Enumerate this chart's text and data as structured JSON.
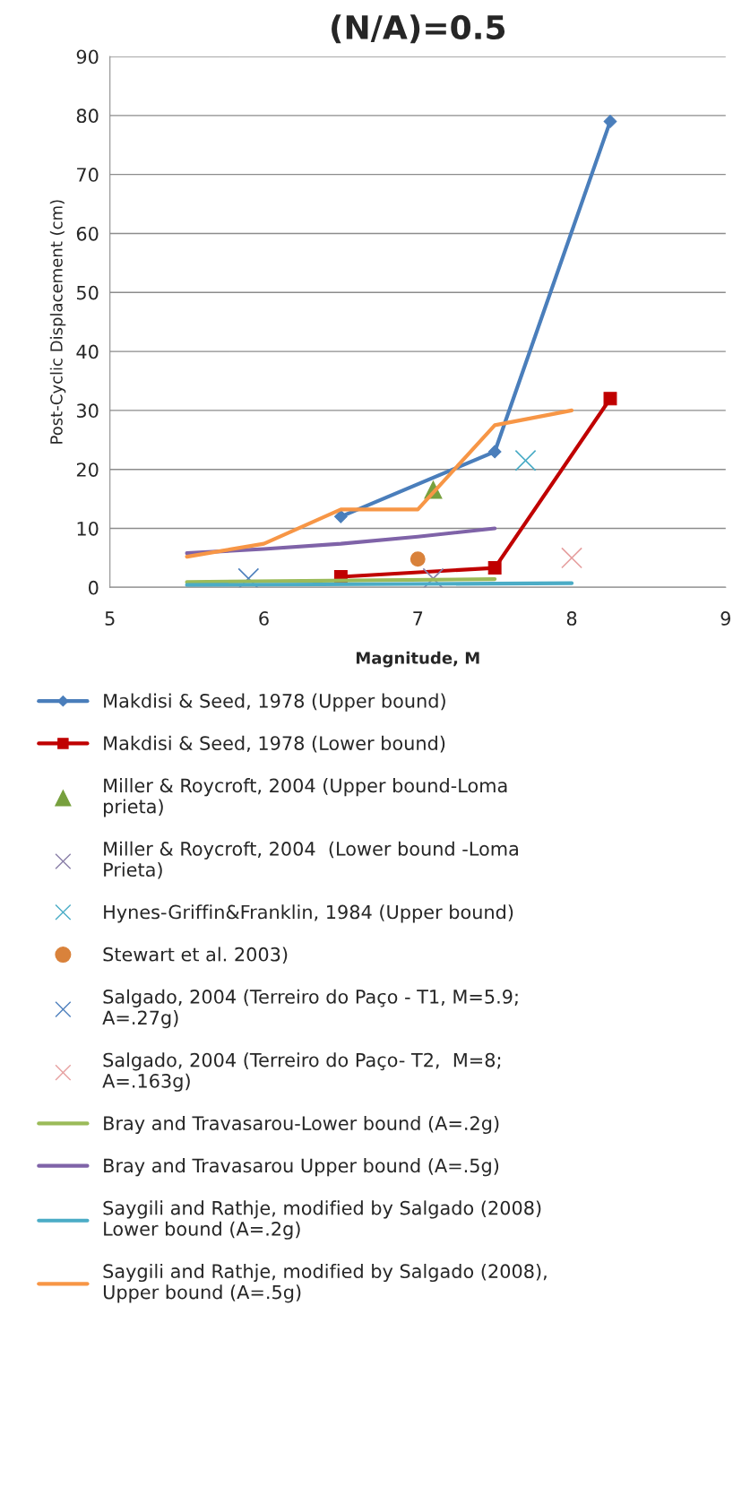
{
  "chart_data": {
    "type": "line",
    "title": "(N/A)=0.5",
    "xlabel": "Magnitude, M",
    "ylabel": "Post-Cyclic Displacement (cm)",
    "xlim": [
      5,
      9
    ],
    "xticks": [
      5,
      6,
      7,
      8,
      9
    ],
    "ylim": [
      0,
      90
    ],
    "yticks": [
      0,
      10,
      20,
      30,
      40,
      50,
      60,
      70,
      80,
      90
    ],
    "grid": "y",
    "legend": "bottom",
    "series": [
      {
        "name": "Makdisi & Seed, 1978 (Upper bound)",
        "marker": "diamond",
        "color": "#4a7ebb",
        "x": [
          6.5,
          7.5,
          8.25
        ],
        "values": [
          12,
          23,
          79
        ]
      },
      {
        "name": "Makdisi & Seed, 1978 (Lower bound)",
        "marker": "square",
        "color": "#c00000",
        "x": [
          6.5,
          7.5,
          8.25
        ],
        "values": [
          1.8,
          3.3,
          32
        ]
      },
      {
        "name": "Miller & Roycroft, 2004 (Upper bound-Loma prieta)",
        "type": "scatter",
        "marker": "triangle",
        "color": "#77a03e",
        "x": [
          7.1
        ],
        "values": [
          16.5
        ]
      },
      {
        "name": "Miller & Roycroft, 2004  (Lower bound -Loma Prieta)",
        "type": "scatter",
        "marker": "cross",
        "color": "#8a7fa8",
        "x": [
          7.1
        ],
        "values": [
          1.5
        ]
      },
      {
        "name": "Hynes-Griffin&Franklin, 1984 (Upper bound)",
        "type": "scatter",
        "marker": "cross",
        "color": "#4aacc6",
        "x": [
          7.7
        ],
        "values": [
          21.5
        ]
      },
      {
        "name": "Stewart et al. 2003)",
        "type": "scatter",
        "marker": "circle",
        "color": "#d9823b",
        "x": [
          7.0
        ],
        "values": [
          4.8
        ]
      },
      {
        "name": "Salgado, 2004 (Terreiro do Paço - T1, M=5.9; A=.27g)",
        "type": "scatter",
        "marker": "cross",
        "color": "#4f81bd",
        "x": [
          5.9
        ],
        "values": [
          1.5
        ]
      },
      {
        "name": "Salgado, 2004 (Terreiro do Paço- T2,  M=8; A=.163g)",
        "type": "scatter",
        "marker": "cross",
        "color": "#e6a0a0",
        "x": [
          8.0
        ],
        "values": [
          5
        ]
      },
      {
        "name": "Bray and Travasarou-Lower bound (A=.2g)",
        "marker": "none",
        "color": "#9bbb59",
        "x": [
          5.5,
          7.5
        ],
        "values": [
          0.9,
          1.4
        ]
      },
      {
        "name": "Bray and Travasarou Upper bound (A=.5g)",
        "marker": "none",
        "color": "#7f63a8",
        "x": [
          5.5,
          6,
          6.5,
          7,
          7.5
        ],
        "values": [
          5.8,
          6.5,
          7.4,
          8.6,
          10
        ]
      },
      {
        "name": "Saygili and Rathje, modified by Salgado (2008) Lower bound (A=.2g)",
        "marker": "none",
        "color": "#4bacc6",
        "x": [
          5.5,
          8
        ],
        "values": [
          0.4,
          0.7
        ]
      },
      {
        "name": "Saygili and Rathje, modified by Salgado (2008), Upper bound (A=.5g)",
        "marker": "none",
        "color": "#f79646",
        "x": [
          5.5,
          6,
          6.5,
          7,
          7.5,
          8
        ],
        "values": [
          5.2,
          7.4,
          13.2,
          13.2,
          27.5,
          30
        ]
      }
    ]
  }
}
